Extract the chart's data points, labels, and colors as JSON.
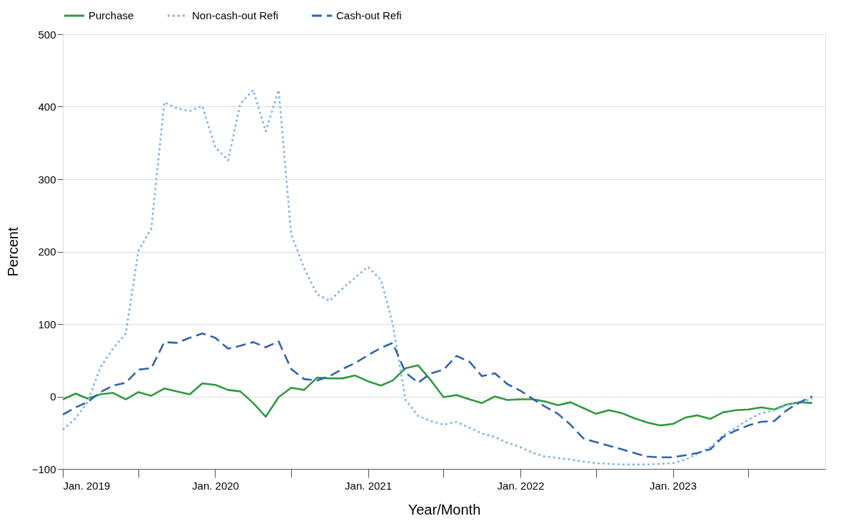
{
  "chart_data": {
    "type": "line",
    "xlabel": "Year/Month",
    "ylabel": "Percent",
    "x": [
      "2019-01",
      "2019-02",
      "2019-03",
      "2019-04",
      "2019-05",
      "2019-06",
      "2019-07",
      "2019-08",
      "2019-09",
      "2019-10",
      "2019-11",
      "2019-12",
      "2020-01",
      "2020-02",
      "2020-03",
      "2020-04",
      "2020-05",
      "2020-06",
      "2020-07",
      "2020-08",
      "2020-09",
      "2020-10",
      "2020-11",
      "2020-12",
      "2021-01",
      "2021-02",
      "2021-03",
      "2021-04",
      "2021-05",
      "2021-06",
      "2021-07",
      "2021-08",
      "2021-09",
      "2021-10",
      "2021-11",
      "2021-12",
      "2022-01",
      "2022-02",
      "2022-03",
      "2022-04",
      "2022-05",
      "2022-06",
      "2022-07",
      "2022-08",
      "2022-09",
      "2022-10",
      "2022-11",
      "2022-12",
      "2023-01",
      "2023-02",
      "2023-03",
      "2023-04",
      "2023-05",
      "2023-06",
      "2023-07",
      "2023-08",
      "2023-09",
      "2023-10",
      "2023-11",
      "2023-12"
    ],
    "series": [
      {
        "name": "Purchase",
        "color": "#2e9a3e",
        "line_style": "solid",
        "values": [
          -4,
          4,
          -3,
          3,
          5,
          -4,
          6,
          1,
          11,
          7,
          3,
          18,
          16,
          9,
          7,
          -9,
          -28,
          -1,
          12,
          9,
          26,
          25,
          25,
          29,
          21,
          15,
          22,
          39,
          43,
          22,
          -1,
          2,
          -4,
          -9,
          0,
          -5,
          -4,
          -4,
          -7,
          -12,
          -8,
          -16,
          -24,
          -19,
          -23,
          -30,
          -36,
          -40,
          -38,
          -29,
          -26,
          -31,
          -22,
          -19,
          -18,
          -15,
          -18,
          -11,
          -8,
          -9
        ]
      },
      {
        "name": "Non-cash-out Refi",
        "color": "#7fb5e6",
        "line_style": "dotted",
        "values": [
          -46,
          -30,
          -8,
          40,
          66,
          87,
          201,
          232,
          406,
          398,
          394,
          401,
          344,
          326,
          404,
          423,
          366,
          423,
          224,
          177,
          141,
          132,
          149,
          164,
          179,
          161,
          101,
          -5,
          -27,
          -34,
          -39,
          -35,
          -43,
          -51,
          -56,
          -64,
          -70,
          -78,
          -83,
          -85,
          -87,
          -90,
          -92,
          -93,
          -94,
          -94,
          -94,
          -93,
          -92,
          -87,
          -79,
          -70,
          -54,
          -43,
          -32,
          -23,
          -19,
          -12,
          -8,
          -3
        ]
      },
      {
        "name": "Cash-out Refi",
        "color": "#2f65b0",
        "line_style": "dashed",
        "values": [
          -25,
          -15,
          -8,
          6,
          15,
          19,
          37,
          39,
          75,
          74,
          81,
          87,
          81,
          66,
          70,
          75,
          68,
          76,
          38,
          24,
          22,
          28,
          38,
          46,
          57,
          67,
          74,
          33,
          19,
          32,
          37,
          56,
          48,
          28,
          32,
          17,
          8,
          -4,
          -14,
          -24,
          -39,
          -58,
          -63,
          -68,
          -73,
          -78,
          -83,
          -84,
          -84,
          -81,
          -78,
          -73,
          -56,
          -47,
          -40,
          -35,
          -34,
          -19,
          -8,
          0
        ]
      }
    ],
    "xlim": [
      "2019-01",
      "2024-01"
    ],
    "xticks": [
      {
        "value": "2019-01",
        "label": "Jan. 2019"
      },
      {
        "value": "2019-07",
        "label": null
      },
      {
        "value": "2020-01",
        "label": "Jan. 2020"
      },
      {
        "value": "2020-07",
        "label": null
      },
      {
        "value": "2021-01",
        "label": "Jan. 2021"
      },
      {
        "value": "2021-07",
        "label": null
      },
      {
        "value": "2022-01",
        "label": "Jan. 2022"
      },
      {
        "value": "2022-07",
        "label": null
      },
      {
        "value": "2023-01",
        "label": "Jan. 2023"
      },
      {
        "value": "2023-07",
        "label": null
      }
    ],
    "ylim": [
      -100,
      500
    ],
    "yticks": [
      -100,
      0,
      100,
      200,
      300,
      400,
      500
    ],
    "grid": "y",
    "legend": "top",
    "marker": "none"
  }
}
